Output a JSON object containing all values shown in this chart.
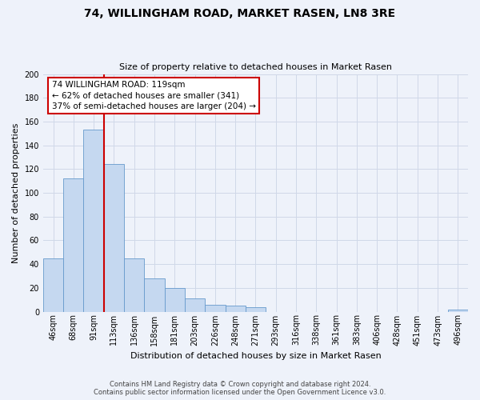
{
  "title": "74, WILLINGHAM ROAD, MARKET RASEN, LN8 3RE",
  "subtitle": "Size of property relative to detached houses in Market Rasen",
  "xlabel": "Distribution of detached houses by size in Market Rasen",
  "ylabel": "Number of detached properties",
  "footer_line1": "Contains HM Land Registry data © Crown copyright and database right 2024.",
  "footer_line2": "Contains public sector information licensed under the Open Government Licence v3.0.",
  "bin_labels": [
    "46sqm",
    "68sqm",
    "91sqm",
    "113sqm",
    "136sqm",
    "158sqm",
    "181sqm",
    "203sqm",
    "226sqm",
    "248sqm",
    "271sqm",
    "293sqm",
    "316sqm",
    "338sqm",
    "361sqm",
    "383sqm",
    "406sqm",
    "428sqm",
    "451sqm",
    "473sqm",
    "496sqm"
  ],
  "bar_values": [
    45,
    112,
    153,
    124,
    45,
    28,
    20,
    11,
    6,
    5,
    4,
    0,
    0,
    0,
    0,
    0,
    0,
    0,
    0,
    0,
    2
  ],
  "bar_color": "#c5d8f0",
  "bar_edge_color": "#6699cc",
  "ylim": [
    0,
    200
  ],
  "yticks": [
    0,
    20,
    40,
    60,
    80,
    100,
    120,
    140,
    160,
    180,
    200
  ],
  "vline_x": 2.5,
  "property_label": "74 WILLINGHAM ROAD: 119sqm",
  "annotation_line1": "← 62% of detached houses are smaller (341)",
  "annotation_line2": "37% of semi-detached houses are larger (204) →",
  "annotation_box_color": "#ffffff",
  "annotation_box_edge": "#cc0000",
  "vline_color": "#cc0000",
  "grid_color": "#d0d8e8",
  "bg_color": "#eef2fa",
  "title_fontsize": 10,
  "subtitle_fontsize": 8,
  "ylabel_fontsize": 8,
  "xlabel_fontsize": 8,
  "tick_fontsize": 7,
  "annotation_fontsize": 7.5,
  "footer_fontsize": 6
}
